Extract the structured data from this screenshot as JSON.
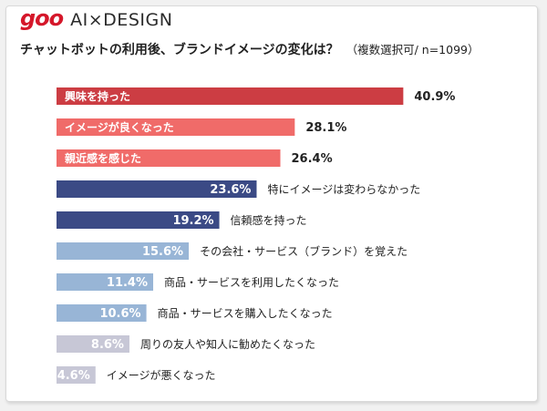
{
  "brand": {
    "logo": "goo",
    "suffix": "AI×DESIGN"
  },
  "title": {
    "main": "チャットボットの利用後、ブランドイメージの変化は？",
    "note": "（複数選択可/ n=1099）"
  },
  "chart_data": {
    "type": "bar",
    "orientation": "horizontal",
    "value_unit": "%",
    "categories": [
      "興味を持った",
      "イメージが良くなった",
      "親近感を感じた",
      "特にイメージは変わらなかった",
      "信頼感を持った",
      "その会社・サービス（ブランド）を覚えた",
      "商品・サービスを利用したくなった",
      "商品・サービスを購入したくなった",
      "周りの友人や知人に勧めたくなった",
      "イメージが悪くなった"
    ],
    "values": [
      40.9,
      28.1,
      26.4,
      23.6,
      19.2,
      15.6,
      11.4,
      10.6,
      8.6,
      4.6
    ],
    "value_labels": [
      "40.9%",
      "28.1%",
      "26.4%",
      "23.6%",
      "19.2%",
      "15.6%",
      "11.4%",
      "10.6%",
      "8.6%",
      "4.6%"
    ],
    "colors": [
      "#cc3d43",
      "#f06b69",
      "#f06b69",
      "#3b4a85",
      "#3b4a85",
      "#98b5d6",
      "#98b5d6",
      "#98b5d6",
      "#c7c7d6",
      "#c7c7d6"
    ],
    "category_inside_bar": [
      true,
      true,
      true,
      false,
      false,
      false,
      false,
      false,
      false,
      false
    ],
    "value_inside_bar": [
      false,
      false,
      false,
      true,
      true,
      true,
      true,
      true,
      true,
      true
    ],
    "grid": false,
    "legend": "none"
  }
}
